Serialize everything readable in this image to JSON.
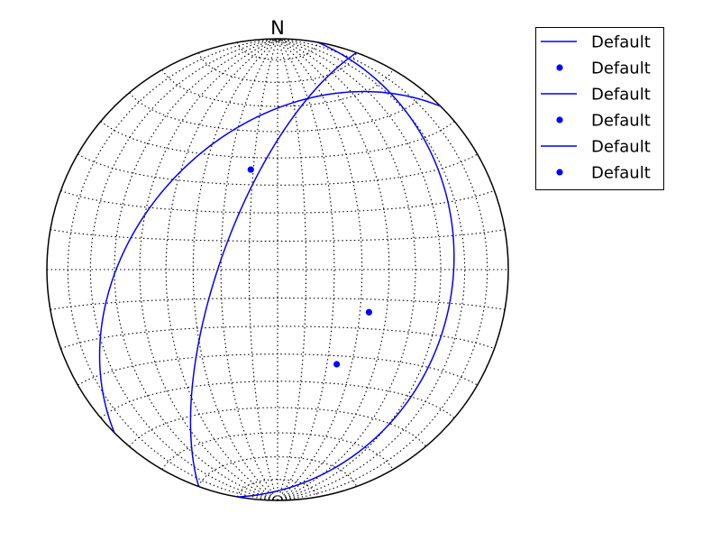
{
  "chart_data": {
    "type": "stereonet",
    "projection": "equal-area lower hemisphere",
    "north_label": "N",
    "grid": true,
    "grid_interval_deg": 10,
    "legend_position": "upper-right",
    "colors": {
      "planes": "#0000ff",
      "poles": "#0000ff",
      "grid": "#000000",
      "primitive": "#000000"
    },
    "series": [
      {
        "name": "Default",
        "kind": "plane",
        "strike": 225,
        "dip": 40
      },
      {
        "name": "Default",
        "kind": "point",
        "trend": 345,
        "plunge": 53
      },
      {
        "name": "Default",
        "kind": "plane",
        "strike": 200,
        "dip": 70
      },
      {
        "name": "Default",
        "kind": "point",
        "trend": 115,
        "plunge": 54
      },
      {
        "name": "Default",
        "kind": "plane",
        "strike": 10,
        "dip": 25
      },
      {
        "name": "Default",
        "kind": "point",
        "trend": 148,
        "plunge": 50
      }
    ],
    "legend": [
      {
        "label": "Default",
        "symbol": "line"
      },
      {
        "label": "Default",
        "symbol": "dot"
      },
      {
        "label": "Default",
        "symbol": "line"
      },
      {
        "label": "Default",
        "symbol": "dot"
      },
      {
        "label": "Default",
        "symbol": "line"
      },
      {
        "label": "Default",
        "symbol": "dot"
      }
    ]
  }
}
